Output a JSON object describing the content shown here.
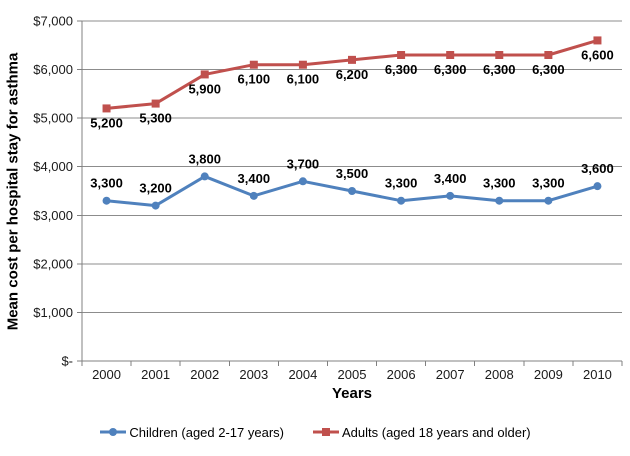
{
  "chart_data": {
    "type": "line",
    "title": "",
    "xlabel": "Years",
    "ylabel": "Mean cost per hospital stay for asthma",
    "categories": [
      "2000",
      "2001",
      "2002",
      "2003",
      "2004",
      "2005",
      "2006",
      "2007",
      "2008",
      "2009",
      "2010"
    ],
    "series": [
      {
        "name": "Children (aged 2-17 years)",
        "color": "#4F81BD",
        "marker": "circle",
        "values": [
          3300,
          3200,
          3800,
          3400,
          3700,
          3500,
          3300,
          3400,
          3300,
          3300,
          3600
        ],
        "labels": [
          "3,300",
          "3,200",
          "3,800",
          "3,400",
          "3,700",
          "3,500",
          "3,300",
          "3,400",
          "3,300",
          "3,300",
          "3,600"
        ],
        "label_position": "above"
      },
      {
        "name": "Adults (aged 18 years and older)",
        "color": "#C0504D",
        "marker": "square",
        "values": [
          5200,
          5300,
          5900,
          6100,
          6100,
          6200,
          6300,
          6300,
          6300,
          6300,
          6600
        ],
        "labels": [
          "5,200",
          "5,300",
          "5,900",
          "6,100",
          "6,100",
          "6,200",
          "6,300",
          "6,300",
          "6,300",
          "6,300",
          "6,600"
        ],
        "label_position": "below"
      }
    ],
    "y_axis": {
      "min": 0,
      "max": 7000,
      "step": 1000,
      "tick_labels": [
        "$-",
        "$1,000",
        "$2,000",
        "$3,000",
        "$4,000",
        "$5,000",
        "$6,000",
        "$7,000"
      ]
    },
    "grid": true,
    "legend_position": "bottom",
    "colors": {
      "gridline": "#8C8C8C",
      "axis": "#808080",
      "text": "#000000",
      "background": "#FFFFFF"
    }
  }
}
